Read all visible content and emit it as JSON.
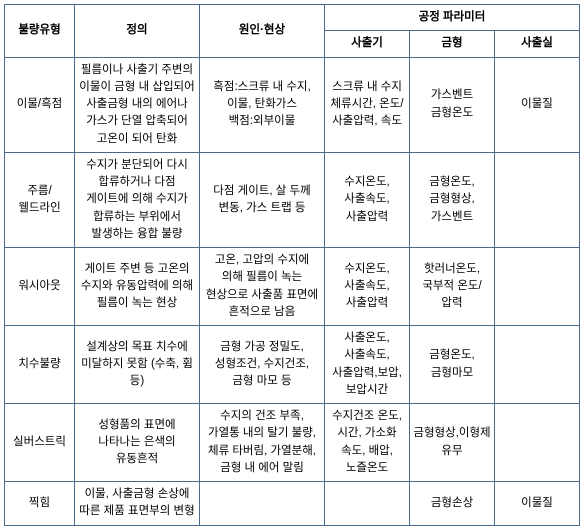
{
  "headers": {
    "defect_type": "불량유형",
    "definition": "정의",
    "cause_phenomenon": "원인·현상",
    "process_param": "공정 파라미터",
    "param_injection": "사출기",
    "param_mold": "금형",
    "param_room": "사출실"
  },
  "rows": [
    {
      "type": "이물/흑점",
      "definition": "필름이나 사출기 주변의 이물이 금형 내 삽입되어 사출금형 내의 에어나 가스가 단열 압축되어 고온이 되어 탄화",
      "cause": "흑점:스크류 내 수지, 이물, 탄화가스\n백점:외부이물",
      "p1": "스크류 내 수지 체류시간, 온도/사출압력, 속도",
      "p2": "가스벤트 금형온도",
      "p3": "이물질"
    },
    {
      "type": "주름/웰드라인",
      "definition": "수지가 분단되어 다시 합류하거나 다점 게이트에 의해 수지가 합류하는 부위에서 발생하는 융합 불량",
      "cause": "다점 게이트, 살 두께 변동, 가스 트랩 등",
      "p1": "수지온도, 사출속도,사출압력",
      "p2": "금형온도,금형형상,가스벤트",
      "p3": ""
    },
    {
      "type": "워시아웃",
      "definition": "게이트 주변 등 고온의 수지와 유동압력에 의해 필름이 녹는 현상",
      "cause": "고온, 고압의 수지에 의해 필름이 녹는 현상으로 사출품 표면에 흔적으로 남음",
      "p1": "수지온도, 사출속도,사출압력",
      "p2": "핫러너온도, 국부적 온도/압력",
      "p3": ""
    },
    {
      "type": "치수불량",
      "definition": "설계상의 목표 치수에 미달하지 못함 (수축, 휨 등)",
      "cause": "금형 가공 정밀도, 성형조건, 수지건조, 금형 마모 등",
      "p1": "사출온도,사출속도,사출압력,보압, 보압시간",
      "p2": "금형온도,금형마모",
      "p3": ""
    },
    {
      "type": "실버스트릭",
      "definition": "성형품의 표면에 나타나는 은색의 유동흔적",
      "cause": "수지의 건조 부족, 가열통 내의 탈기 불량, 체류 타버림, 가열분해, 금형 내 에어 말림",
      "p1": "수지건조 온도,시간, 가소화 속도, 배압, 노즐온도",
      "p2": "금형형상,이형제 유무",
      "p3": ""
    },
    {
      "type": "찍힘",
      "definition": "이물, 사출금형 손상에 따른 제품 표면부의 변형",
      "cause": "",
      "p1": "",
      "p2": "금형손상",
      "p3": "이물질"
    }
  ]
}
